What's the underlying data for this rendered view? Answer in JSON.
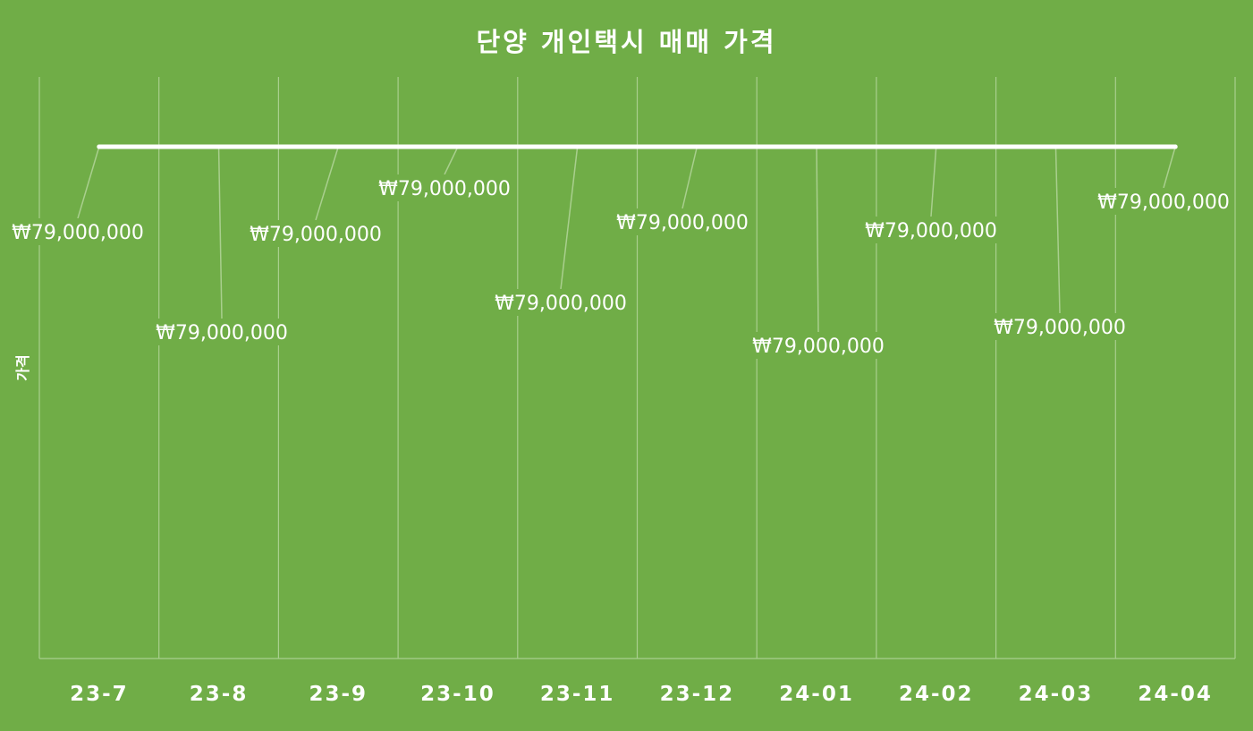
{
  "chart_data": {
    "type": "line",
    "title": "단양 개인택시 매매 가격",
    "xlabel": "",
    "ylabel": "가격",
    "categories": [
      "23-7",
      "23-8",
      "23-9",
      "23-10",
      "23-11",
      "23-12",
      "24-01",
      "24-02",
      "24-03",
      "24-04"
    ],
    "series": [
      {
        "values": [
          79000000,
          79000000,
          79000000,
          79000000,
          79000000,
          79000000,
          79000000,
          79000000,
          79000000,
          79000000
        ],
        "labels": [
          "₩79,000,000",
          "₩79,000,000",
          "₩79,000,000",
          "₩79,000,000",
          "₩79,000,000",
          "₩79,000,000",
          "₩79,000,000",
          "₩79,000,000",
          "₩79,000,000",
          "₩79,000,000"
        ],
        "color": "#FFFFFF"
      }
    ],
    "grid": "vertical",
    "legend": "none",
    "colors": {
      "background": "#70AD47",
      "gridline": "#A9CF8E",
      "text": "#FFFFFF"
    }
  }
}
